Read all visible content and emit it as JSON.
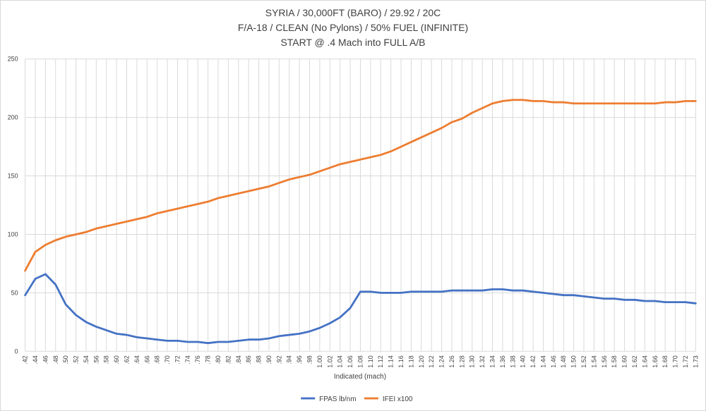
{
  "chart_data": {
    "type": "line",
    "title_lines": [
      "SYRIA / 30,000FT (BARO) / 29.92 / 20C",
      "F/A-18 / CLEAN (No Pylons) / 50% FUEL (INFINITE)",
      "START @ .4 Mach into FULL A/B"
    ],
    "xlabel": "Indicated (mach)",
    "ylabel": "",
    "ylim": [
      0,
      250
    ],
    "yticks": [
      0,
      50,
      100,
      150,
      200,
      250
    ],
    "grid": true,
    "legend": "bottom",
    "categories": [
      ".42",
      ".44",
      ".46",
      ".48",
      ".50",
      ".52",
      ".54",
      ".56",
      ".58",
      ".60",
      ".62",
      ".64",
      ".66",
      ".68",
      ".70",
      ".72",
      ".74",
      ".76",
      ".78",
      ".80",
      ".82",
      ".84",
      ".86",
      ".88",
      ".90",
      ".92",
      ".94",
      ".96",
      ".98",
      "1.00",
      "1.02",
      "1.04",
      "1.06",
      "1.08",
      "1.10",
      "1.12",
      "1.14",
      "1.16",
      "1.18",
      "1.20",
      "1.22",
      "1.24",
      "1.26",
      "1.28",
      "1.30",
      "1.32",
      "1.34",
      "1.36",
      "1.38",
      "1.40",
      "1.42",
      "1.44",
      "1.46",
      "1.48",
      "1.50",
      "1.52",
      "1.54",
      "1.56",
      "1.58",
      "1.60",
      "1.62",
      "1.64",
      "1.66",
      "1.68",
      "1.70",
      "1.72",
      "1.73"
    ],
    "series": [
      {
        "name": "FPAS lb/nm",
        "color": "#4472c4",
        "values": [
          48,
          62,
          66,
          57,
          40,
          31,
          25,
          21,
          18,
          15,
          14,
          12,
          11,
          10,
          9,
          9,
          8,
          8,
          7,
          8,
          8,
          9,
          10,
          10,
          11,
          13,
          14,
          15,
          17,
          20,
          24,
          29,
          37,
          51,
          51,
          50,
          50,
          50,
          51,
          51,
          51,
          51,
          52,
          52,
          52,
          52,
          53,
          53,
          52,
          52,
          51,
          50,
          49,
          48,
          48,
          47,
          46,
          45,
          45,
          44,
          44,
          43,
          43,
          42,
          42,
          42,
          41
        ]
      },
      {
        "name": "IFEI x100",
        "color": "#ed7d31",
        "values": [
          69,
          85,
          91,
          95,
          98,
          100,
          102,
          105,
          107,
          109,
          111,
          113,
          115,
          118,
          120,
          122,
          124,
          126,
          128,
          131,
          133,
          135,
          137,
          139,
          141,
          144,
          147,
          149,
          151,
          154,
          157,
          160,
          162,
          164,
          166,
          168,
          171,
          175,
          179,
          183,
          187,
          191,
          196,
          199,
          204,
          208,
          212,
          214,
          215,
          215,
          214,
          214,
          213,
          213,
          212,
          212,
          212,
          212,
          212,
          212,
          212,
          212,
          212,
          213,
          213,
          214,
          214
        ]
      }
    ]
  }
}
